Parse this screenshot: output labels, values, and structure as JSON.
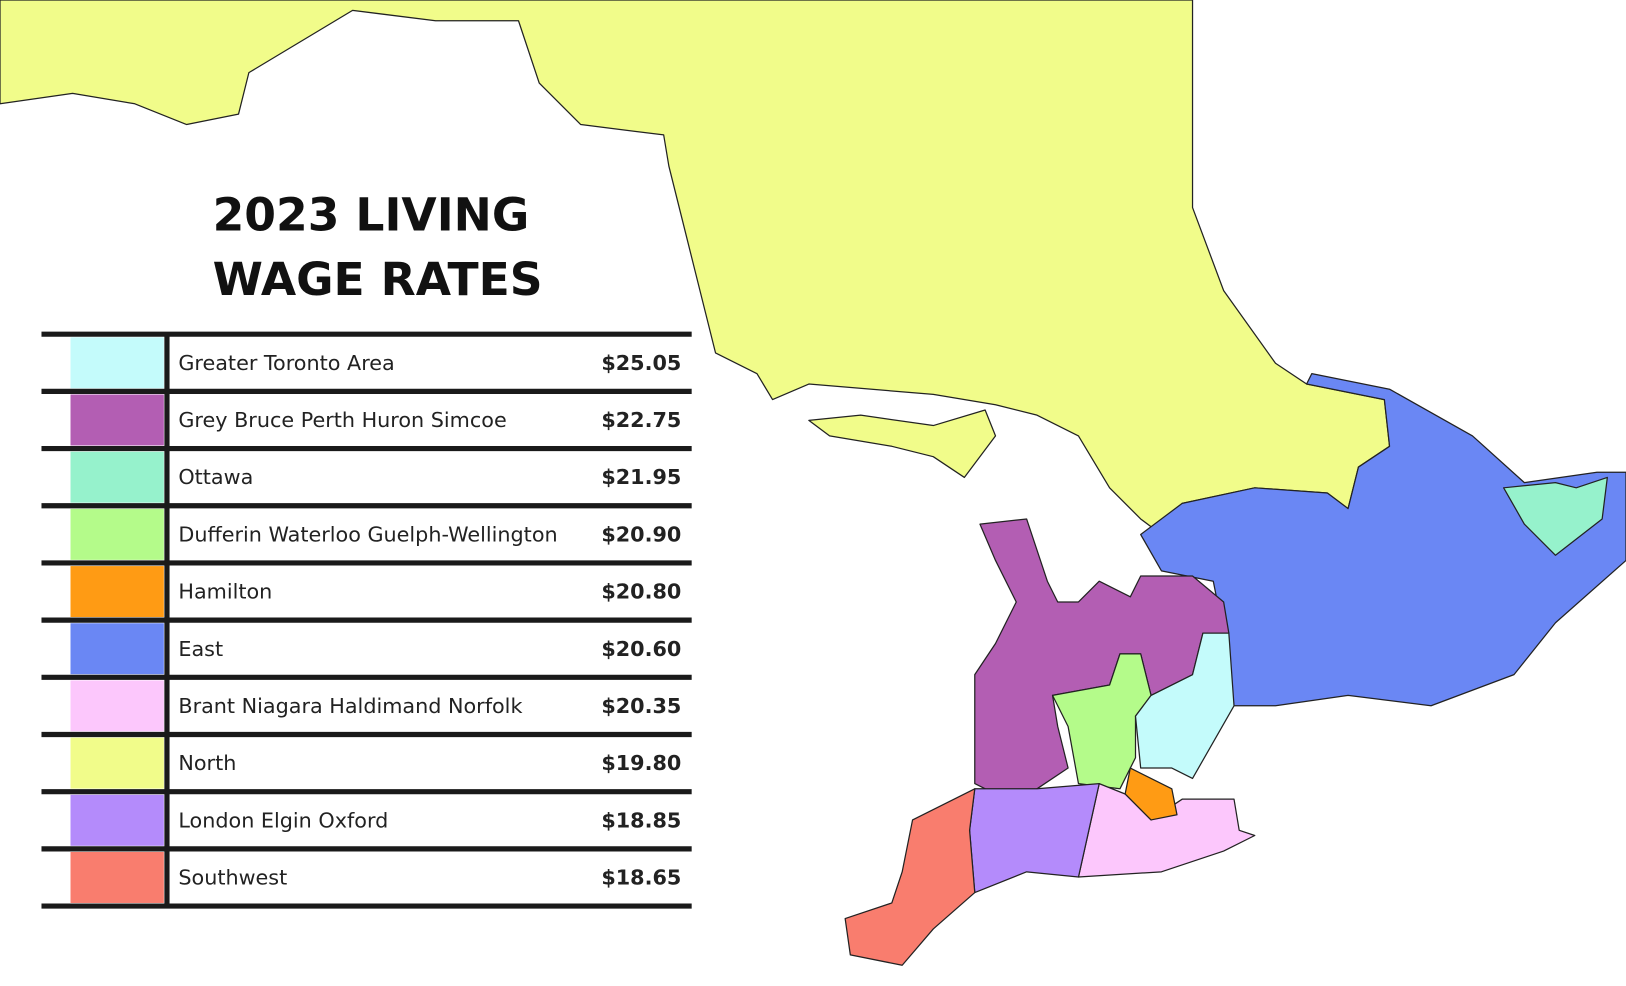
{
  "title": "2023 LIVING WAGE RATES",
  "legend": {
    "rows": [
      {
        "region": "Greater Toronto Area",
        "rate": "$25.05",
        "color": "#c4fbfb"
      },
      {
        "region": "Grey Bruce Perth Huron Simcoe",
        "rate": "$22.75",
        "color": "#b35eb3"
      },
      {
        "region": "Ottawa",
        "rate": "$21.95",
        "color": "#96f2cc"
      },
      {
        "region": "Dufferin Waterloo Guelph-Wellington",
        "rate": "$20.90",
        "color": "#b4fb8a"
      },
      {
        "region": "Hamilton",
        "rate": "$20.80",
        "color": "#ff9b14"
      },
      {
        "region": "East",
        "rate": "$20.60",
        "color": "#6a87f4"
      },
      {
        "region": "Brant Niagara Haldimand Norfolk",
        "rate": "$20.35",
        "color": "#fcc7fc"
      },
      {
        "region": "North",
        "rate": "$19.80",
        "color": "#f1fc8a"
      },
      {
        "region": "London Elgin Oxford",
        "rate": "$18.85",
        "color": "#b48bfb"
      },
      {
        "region": "Southwest",
        "rate": "$18.65",
        "color": "#f97d6e"
      }
    ]
  }
}
